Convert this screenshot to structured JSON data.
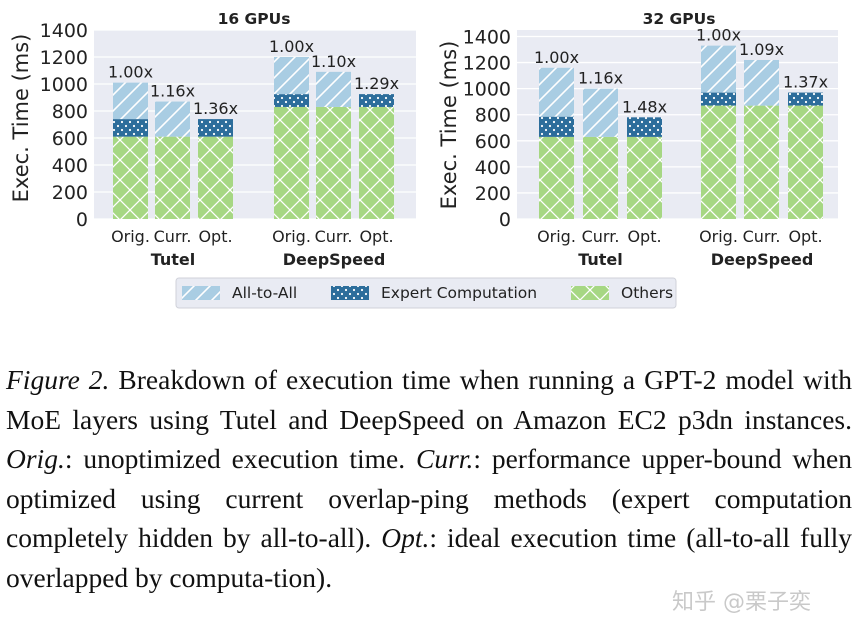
{
  "chart_data": [
    {
      "type": "bar",
      "stacked": true,
      "title": "16 GPUs",
      "ylabel": "Exec. Time (ms)",
      "ylim": [
        0,
        1400
      ],
      "yticks": [
        "0",
        "200",
        "400",
        "600",
        "800",
        "1000",
        "1200",
        "1400"
      ],
      "groups": [
        {
          "name": "Tutel",
          "bars": [
            {
              "label": "Orig.",
              "others": 610,
              "expert": 130,
              "a2a": 270,
              "ratio": "1.00x"
            },
            {
              "label": "Curr.",
              "others": 610,
              "expert": 0,
              "a2a": 260,
              "ratio": "1.16x"
            },
            {
              "label": "Opt.",
              "others": 610,
              "expert": 130,
              "a2a": 0,
              "ratio": "1.36x"
            }
          ]
        },
        {
          "name": "DeepSpeed",
          "bars": [
            {
              "label": "Orig.",
              "others": 830,
              "expert": 95,
              "a2a": 275,
              "ratio": "1.00x"
            },
            {
              "label": "Curr.",
              "others": 830,
              "expert": 0,
              "a2a": 260,
              "ratio": "1.10x"
            },
            {
              "label": "Opt.",
              "others": 830,
              "expert": 95,
              "a2a": 0,
              "ratio": "1.29x"
            }
          ]
        }
      ]
    },
    {
      "type": "bar",
      "stacked": true,
      "title": "32 GPUs",
      "ylabel": "Exec. Time (ms)",
      "ylim": [
        0,
        1450
      ],
      "yticks": [
        "0",
        "200",
        "400",
        "600",
        "800",
        "1000",
        "1200",
        "1400"
      ],
      "groups": [
        {
          "name": "Tutel",
          "bars": [
            {
              "label": "Orig.",
              "others": 630,
              "expert": 155,
              "a2a": 375,
              "ratio": "1.00x"
            },
            {
              "label": "Curr.",
              "others": 630,
              "expert": 0,
              "a2a": 370,
              "ratio": "1.16x"
            },
            {
              "label": "Opt.",
              "others": 630,
              "expert": 150,
              "a2a": 0,
              "ratio": "1.48x"
            }
          ]
        },
        {
          "name": "DeepSpeed",
          "bars": [
            {
              "label": "Orig.",
              "others": 870,
              "expert": 100,
              "a2a": 360,
              "ratio": "1.00x"
            },
            {
              "label": "Curr.",
              "others": 870,
              "expert": 0,
              "a2a": 350,
              "ratio": "1.09x"
            },
            {
              "label": "Opt.",
              "others": 870,
              "expert": 100,
              "a2a": 0,
              "ratio": "1.37x"
            }
          ]
        }
      ]
    }
  ],
  "legend": [
    {
      "key": "a2a",
      "label": "All-to-All"
    },
    {
      "key": "expert",
      "label": "Expert Computation"
    },
    {
      "key": "others",
      "label": "Others"
    }
  ],
  "colors": {
    "a2a": "#a9cde3",
    "expert": "#2c6d9b",
    "others": "#a6d783",
    "panel_bg": "#e9ebf3",
    "grid": "#ffffff"
  },
  "caption": {
    "figure_label": "Figure 2.",
    "text_1": " Breakdown of execution time when running a GPT-2 model with MoE layers using Tutel and DeepSpeed on Amazon EC2 p3dn instances. ",
    "orig_label": "Orig.",
    "orig_text": ": unoptimized execution time. ",
    "curr_label": "Curr.",
    "curr_text": ": performance upper-bound when optimized using current overlap-ping methods (expert computation completely hidden by all-to-all). ",
    "opt_label": "Opt.",
    "opt_text": ": ideal execution time (all-to-all fully overlapped by computa-tion)."
  },
  "watermark": "知乎 @栗子奕"
}
